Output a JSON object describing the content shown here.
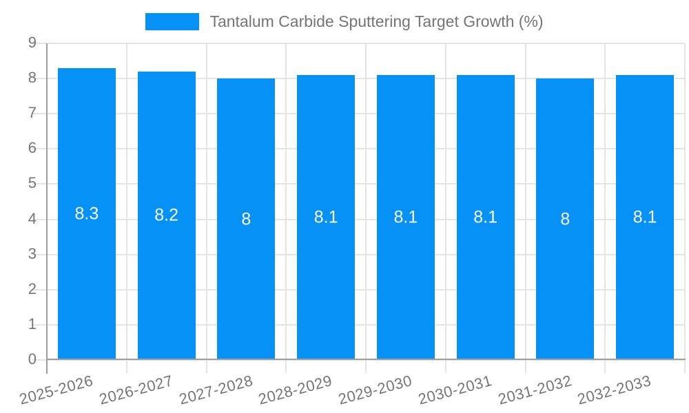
{
  "legend": {
    "label": "Tantalum Carbide Sputtering Target Growth (%)",
    "swatch_color": "#0591f5"
  },
  "chart_data": {
    "type": "bar",
    "title": "Tantalum Carbide Sputtering Target Growth (%)",
    "categories": [
      "2025-2026",
      "2026-2027",
      "2027-2028",
      "2028-2029",
      "2029-2030",
      "2030-2031",
      "2031-2032",
      "2032-2033"
    ],
    "values": [
      8.3,
      8.2,
      8,
      8.1,
      8.1,
      8.1,
      8,
      8.1
    ],
    "value_labels": [
      "8.3",
      "8.2",
      "8",
      "8.1",
      "8.1",
      "8.1",
      "8",
      "8.1"
    ],
    "xlabel": "",
    "ylabel": "",
    "ylim": [
      0,
      9
    ],
    "yticks": [
      0,
      1,
      2,
      3,
      4,
      5,
      6,
      7,
      8,
      9
    ],
    "grid": true,
    "legend_position": "top",
    "x_tick_rotation_deg": -15,
    "colors": {
      "bar": "#0591f5",
      "gridline": "#e4e4e4",
      "axis_line": "#9e9e9e",
      "tick_text": "#757575",
      "bar_label_text": "#ffffff",
      "background": "#ffffff"
    }
  }
}
